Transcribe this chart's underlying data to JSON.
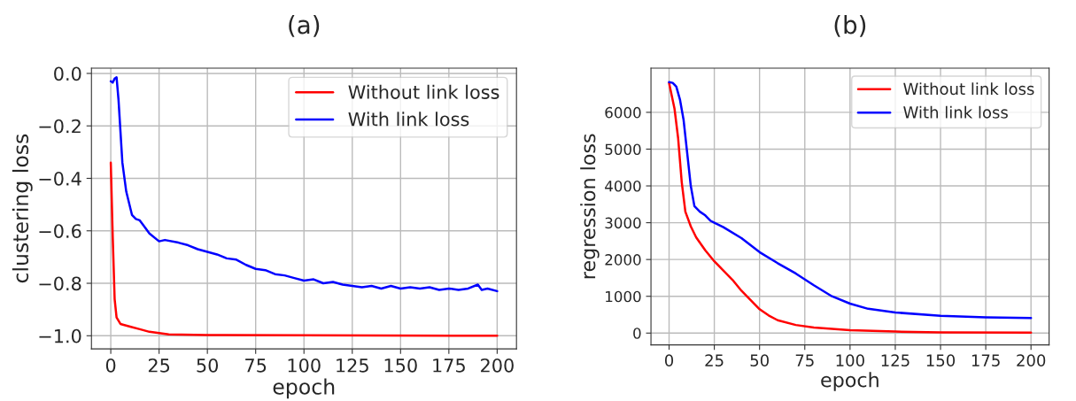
{
  "chart_data": [
    {
      "type": "line",
      "title": "(a)",
      "xlabel": "epoch",
      "ylabel": "clustering loss",
      "xlim": [
        -10,
        210
      ],
      "xticks": [
        0,
        25,
        50,
        75,
        100,
        125,
        150,
        175,
        200
      ],
      "ylim": [
        -1.05,
        0.02
      ],
      "yticks": [
        {
          "value": 0.0,
          "label": "0.0"
        },
        {
          "value": -0.2,
          "label": "−0.2"
        },
        {
          "value": -0.4,
          "label": "−0.4"
        },
        {
          "value": -0.6,
          "label": "−0.6"
        },
        {
          "value": -0.8,
          "label": "−0.8"
        },
        {
          "value": -1.0,
          "label": "−1.0"
        }
      ],
      "grid": true,
      "legend": "top right",
      "series": [
        {
          "name": "Without link loss",
          "color": "#ff0000",
          "x": [
            0,
            1,
            2,
            3,
            5,
            10,
            15,
            20,
            30,
            50,
            100,
            200
          ],
          "values": [
            -0.34,
            -0.62,
            -0.86,
            -0.93,
            -0.955,
            -0.965,
            -0.975,
            -0.985,
            -0.995,
            -0.997,
            -0.998,
            -1.0
          ]
        },
        {
          "name": "With link loss",
          "color": "#0000ff",
          "x": [
            0,
            1,
            2,
            3,
            4,
            6,
            8,
            11,
            13,
            15,
            20,
            25,
            28,
            35,
            40,
            45,
            50,
            55,
            60,
            65,
            70,
            75,
            80,
            85,
            90,
            95,
            100,
            105,
            110,
            115,
            120,
            125,
            130,
            135,
            140,
            145,
            150,
            155,
            160,
            165,
            170,
            175,
            180,
            185,
            190,
            192,
            195,
            200
          ],
          "values": [
            -0.03,
            -0.035,
            -0.02,
            -0.015,
            -0.1,
            -0.34,
            -0.45,
            -0.54,
            -0.555,
            -0.56,
            -0.61,
            -0.64,
            -0.635,
            -0.645,
            -0.655,
            -0.67,
            -0.68,
            -0.69,
            -0.705,
            -0.71,
            -0.73,
            -0.745,
            -0.75,
            -0.765,
            -0.77,
            -0.78,
            -0.79,
            -0.785,
            -0.8,
            -0.795,
            -0.805,
            -0.81,
            -0.815,
            -0.81,
            -0.82,
            -0.81,
            -0.82,
            -0.815,
            -0.82,
            -0.815,
            -0.825,
            -0.82,
            -0.825,
            -0.82,
            -0.805,
            -0.825,
            -0.82,
            -0.83
          ]
        }
      ]
    },
    {
      "type": "line",
      "title": "(b)",
      "xlabel": "epoch",
      "ylabel": "regression loss",
      "xlim": [
        -10,
        210
      ],
      "xticks": [
        0,
        25,
        50,
        75,
        100,
        125,
        150,
        175,
        200
      ],
      "ylim": [
        -320,
        7200
      ],
      "yticks": [
        0,
        1000,
        2000,
        3000,
        4000,
        5000,
        6000
      ],
      "grid": true,
      "legend": "top right",
      "series": [
        {
          "name": "Without link loss",
          "color": "#ff0000",
          "x": [
            0,
            3,
            5,
            7,
            9,
            12,
            15,
            20,
            25,
            30,
            35,
            40,
            45,
            50,
            55,
            60,
            70,
            80,
            100,
            125,
            150,
            200
          ],
          "values": [
            6800,
            6100,
            5300,
            4100,
            3300,
            2900,
            2600,
            2250,
            1950,
            1700,
            1450,
            1150,
            900,
            650,
            480,
            350,
            220,
            150,
            80,
            40,
            20,
            10
          ]
        },
        {
          "name": "With link loss",
          "color": "#0000ff",
          "x": [
            0,
            2,
            4,
            6,
            8,
            10,
            12,
            14,
            17,
            20,
            23,
            25,
            30,
            40,
            50,
            60,
            70,
            80,
            90,
            100,
            110,
            125,
            150,
            175,
            200
          ],
          "values": [
            6820,
            6800,
            6700,
            6350,
            5800,
            4900,
            4000,
            3450,
            3300,
            3200,
            3050,
            3000,
            2880,
            2580,
            2200,
            1900,
            1620,
            1300,
            1000,
            800,
            660,
            560,
            470,
            430,
            410
          ]
        }
      ]
    }
  ]
}
